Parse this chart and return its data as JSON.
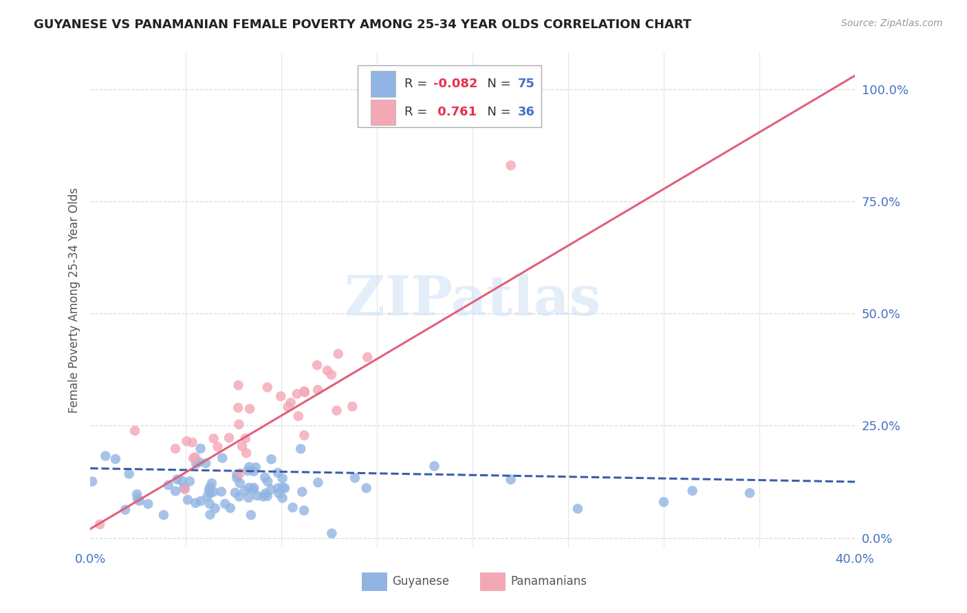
{
  "title": "GUYANESE VS PANAMANIAN FEMALE POVERTY AMONG 25-34 YEAR OLDS CORRELATION CHART",
  "source": "Source: ZipAtlas.com",
  "ylabel": "Female Poverty Among 25-34 Year Olds",
  "xlim": [
    0.0,
    0.4
  ],
  "ylim": [
    -0.02,
    1.08
  ],
  "xticks": [
    0.0,
    0.05,
    0.1,
    0.15,
    0.2,
    0.25,
    0.3,
    0.35,
    0.4
  ],
  "ytick_right": [
    0.0,
    0.25,
    0.5,
    0.75,
    1.0
  ],
  "ytick_right_labels": [
    "0.0%",
    "25.0%",
    "50.0%",
    "75.0%",
    "100.0%"
  ],
  "guyanese_color": "#92b4e3",
  "panamanian_color": "#f4a7b5",
  "guyanese_line_color": "#3a5da8",
  "panamanian_line_color": "#e0607a",
  "guyanese_R": -0.082,
  "guyanese_N": 75,
  "panamanian_R": 0.761,
  "panamanian_N": 36,
  "watermark": "ZIPatlas",
  "background_color": "#ffffff",
  "grid_color": "#d0d0d0",
  "title_color": "#222222",
  "axis_label_color": "#4472c4",
  "seed": 42,
  "pink_line_y0": 0.02,
  "pink_line_y1": 1.03,
  "blue_line_y0": 0.155,
  "blue_line_y1": 0.125
}
